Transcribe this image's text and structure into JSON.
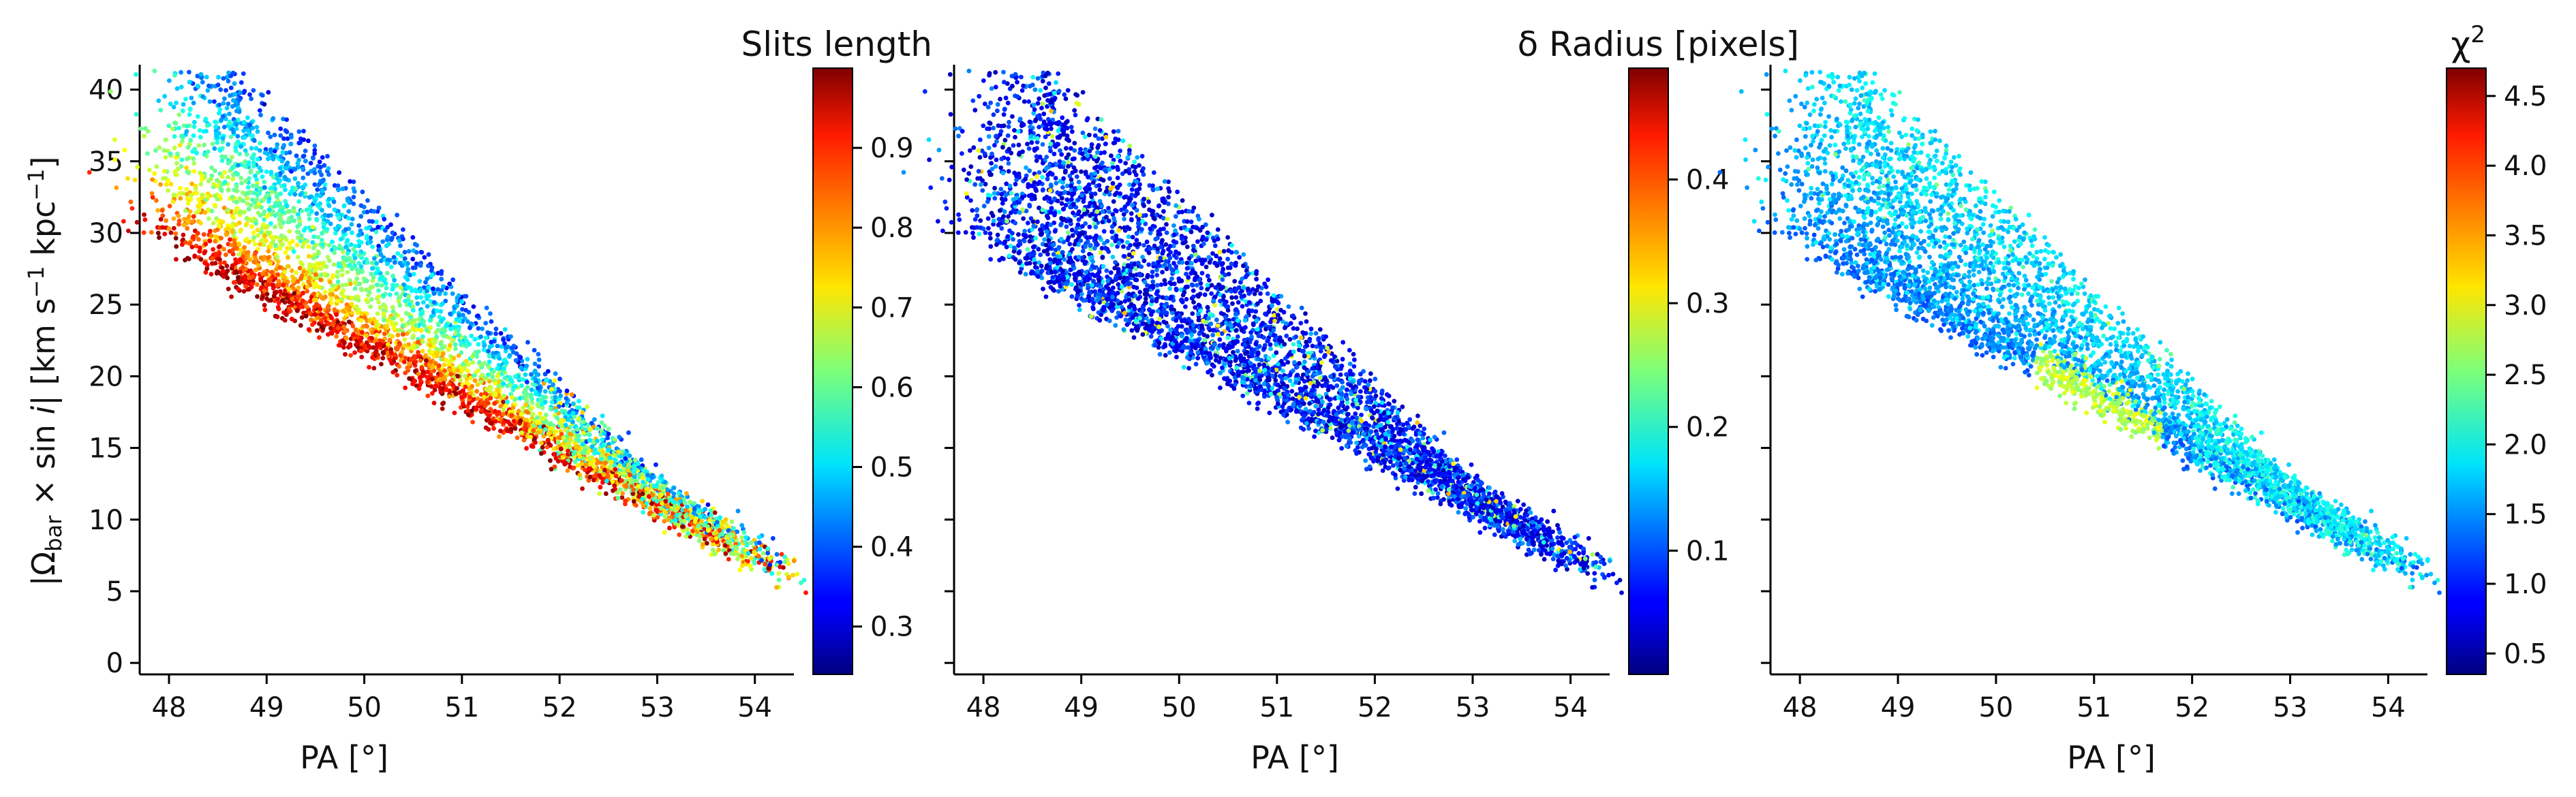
{
  "chart_data": [
    {
      "type": "scatter",
      "panel": "left",
      "xlabel": "PA [°]",
      "ylabel": "|Ω_bar × sin i|   [km s^-1 kpc^-1]",
      "xlim": [
        47.7,
        54.4
      ],
      "ylim": [
        -0.8,
        41.5
      ],
      "xticks": [
        48,
        49,
        50,
        51,
        52,
        53,
        54
      ],
      "yticks": [
        0,
        5,
        10,
        15,
        20,
        25,
        30,
        35,
        40
      ],
      "colorbar": {
        "title": "Slits length",
        "colormap": "jet",
        "range": [
          0.24,
          1.0
        ],
        "ticks": [
          "0.3",
          "0.4",
          "0.5",
          "0.6",
          "0.7",
          "0.8",
          "0.9"
        ]
      },
      "points_estimated": {
        "count": 4500,
        "trend_line": [
          [
            48.2,
            28.5
          ],
          [
            50.0,
            23.0
          ],
          [
            51.0,
            18.5
          ],
          [
            52.0,
            14.8
          ],
          [
            53.0,
            10.5
          ],
          [
            54.0,
            7.5
          ]
        ],
        "color_trend": "low values near upper-left edge of the cloud, high values along the lower edge"
      }
    },
    {
      "type": "scatter",
      "panel": "middle",
      "xlabel": "PA [°]",
      "ylabel": "",
      "xlim": [
        47.7,
        54.4
      ],
      "ylim": [
        -0.8,
        41.5
      ],
      "xticks": [
        48,
        49,
        50,
        51,
        52,
        53,
        54
      ],
      "colorbar": {
        "title": "δ Radius [pixels]",
        "colormap": "jet",
        "range": [
          0.0,
          0.49
        ],
        "ticks": [
          "0.1",
          "0.2",
          "0.3",
          "0.4"
        ]
      },
      "points_estimated": {
        "count": 4500,
        "color_trend": "mostly low values (blue), scattered mid values"
      }
    },
    {
      "type": "scatter",
      "panel": "right",
      "xlabel": "PA [°]",
      "ylabel": "",
      "xlim": [
        47.7,
        54.4
      ],
      "ylim": [
        -0.8,
        41.5
      ],
      "xticks": [
        48,
        49,
        50,
        51,
        52,
        53,
        54
      ],
      "colorbar": {
        "title": "χ²",
        "colormap": "jet",
        "range": [
          0.35,
          4.7
        ],
        "ticks": [
          "0.5",
          "1.0",
          "1.5",
          "2.0",
          "2.5",
          "3.0",
          "3.5",
          "4.0",
          "4.5"
        ]
      },
      "points_estimated": {
        "count": 4500,
        "color_trend": "mostly 0.7–2.0, band of ~2.5–3.0 near PA 50.5–51.5, |Ω| 17–22"
      }
    }
  ]
}
